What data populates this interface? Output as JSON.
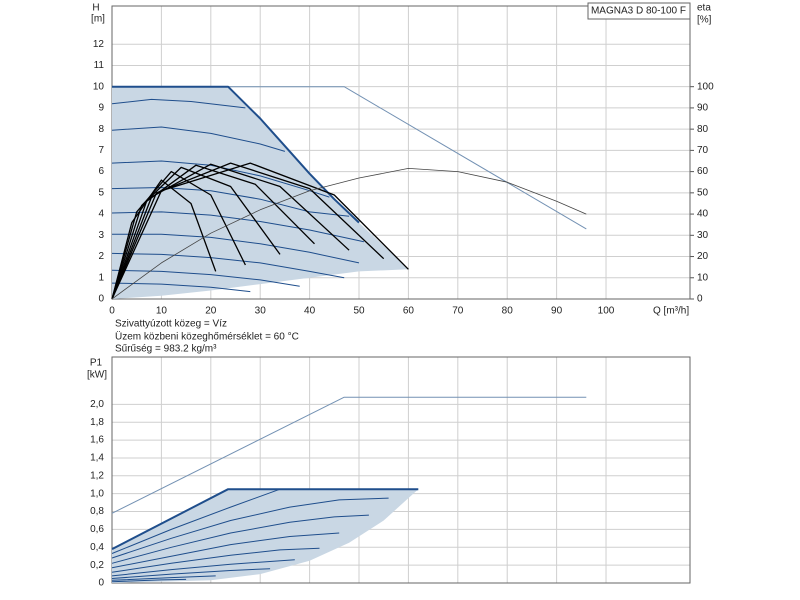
{
  "chart_data": [
    {
      "type": "line",
      "title": "MAGNA3 D 80-100 F",
      "ylabel": "H",
      "yunit": "[m]",
      "y2label": "eta",
      "y2unit": "[%]",
      "xlabel": "Q [m³/h]",
      "notes": [
        "Szivattyúzott közeg = Víz",
        "Üzem közbeni közeghőmérséklet = 60 °C",
        "Sűrűség = 983.2 kg/m³"
      ],
      "xlim": [
        0,
        117
      ],
      "xticks": [
        0,
        10,
        20,
        30,
        40,
        50,
        60,
        70,
        80,
        90,
        100
      ],
      "ylim": [
        0,
        13.8
      ],
      "yticks": [
        0,
        1,
        2,
        3,
        4,
        5,
        6,
        7,
        8,
        9,
        10,
        11,
        12
      ],
      "y2lim": [
        0,
        138
      ],
      "y2ticks": [
        0,
        10,
        20,
        30,
        40,
        50,
        60,
        70,
        80,
        90,
        100
      ],
      "grid": true,
      "series": [
        {
          "fill": "#c9d7e4",
          "x": [
            0,
            23.5,
            30,
            35,
            40,
            45,
            50,
            55,
            60,
            50,
            40,
            30,
            20,
            10,
            0
          ],
          "values": [
            10,
            10,
            8.5,
            7.2,
            5.9,
            4.7,
            3.6,
            2.5,
            1.4,
            1.3,
            1.0,
            0.7,
            0.4,
            0.15,
            0
          ]
        },
        {
          "color": "#7391b3",
          "width": 1,
          "x": [
            0,
            47,
            96
          ],
          "values": [
            10,
            10,
            3.3
          ]
        },
        {
          "color": "#1f4e8c",
          "width": 2,
          "x": [
            0,
            23.5,
            30,
            35,
            40,
            45,
            50
          ],
          "values": [
            10,
            10,
            8.5,
            7.2,
            5.9,
            4.7,
            3.6
          ]
        },
        {
          "color": "#1f4e8c",
          "width": 1,
          "x": [
            0,
            8,
            16,
            27
          ],
          "values": [
            9.2,
            9.4,
            9.3,
            9.0
          ]
        },
        {
          "color": "#1f4e8c",
          "width": 1,
          "x": [
            0,
            10,
            20,
            30,
            35
          ],
          "values": [
            7.95,
            8.1,
            7.8,
            7.3,
            6.95
          ]
        },
        {
          "color": "#1f4e8c",
          "width": 1,
          "x": [
            0,
            10,
            20,
            30,
            40,
            44
          ],
          "values": [
            6.4,
            6.5,
            6.3,
            5.8,
            5.1,
            4.8
          ]
        },
        {
          "color": "#1f4e8c",
          "width": 1,
          "x": [
            0,
            10,
            20,
            30,
            40,
            48
          ],
          "values": [
            5.2,
            5.25,
            5.1,
            4.7,
            4.1,
            3.9
          ]
        },
        {
          "color": "#1f4e8c",
          "width": 1,
          "x": [
            0,
            10,
            20,
            30,
            40,
            51
          ],
          "values": [
            4.05,
            4.1,
            3.95,
            3.65,
            3.25,
            2.7
          ]
        },
        {
          "color": "#1f4e8c",
          "width": 1,
          "x": [
            0,
            10,
            20,
            30,
            40,
            50
          ],
          "values": [
            3.05,
            3.05,
            2.9,
            2.6,
            2.2,
            1.7
          ]
        },
        {
          "color": "#1f4e8c",
          "width": 1,
          "x": [
            0,
            10,
            20,
            30,
            40,
            47
          ],
          "values": [
            2.15,
            2.1,
            1.95,
            1.7,
            1.3,
            1.0
          ]
        },
        {
          "color": "#1f4e8c",
          "width": 1,
          "x": [
            0,
            10,
            20,
            30,
            38
          ],
          "values": [
            1.35,
            1.3,
            1.15,
            0.9,
            0.6
          ]
        },
        {
          "color": "#1f4e8c",
          "width": 1,
          "x": [
            0,
            10,
            20,
            28
          ],
          "values": [
            0.75,
            0.7,
            0.55,
            0.35
          ]
        },
        {
          "color": "#000000",
          "width": 1.3,
          "x": [
            0,
            4,
            10,
            16,
            21
          ],
          "values": [
            0,
            3.6,
            5.6,
            4.5,
            1.3
          ]
        },
        {
          "color": "#000000",
          "width": 1.3,
          "x": [
            0,
            5,
            12,
            20,
            27
          ],
          "values": [
            0,
            4.1,
            6.0,
            4.9,
            1.6
          ]
        },
        {
          "color": "#000000",
          "width": 1.3,
          "x": [
            0,
            6,
            14,
            24,
            34
          ],
          "values": [
            0,
            4.4,
            6.2,
            5.3,
            2.1
          ]
        },
        {
          "color": "#000000",
          "width": 1.3,
          "x": [
            0,
            7,
            17,
            29,
            41
          ],
          "values": [
            0,
            4.6,
            6.3,
            5.4,
            2.6
          ]
        },
        {
          "color": "#000000",
          "width": 1.3,
          "x": [
            0,
            8,
            20,
            34,
            48
          ],
          "values": [
            0,
            4.8,
            6.35,
            5.3,
            2.3
          ]
        },
        {
          "color": "#000000",
          "width": 1.3,
          "x": [
            0,
            9,
            24,
            40,
            55
          ],
          "values": [
            0,
            5.0,
            6.4,
            5.2,
            1.9
          ]
        },
        {
          "color": "#000000",
          "width": 1.3,
          "x": [
            0,
            10,
            28,
            45,
            60
          ],
          "values": [
            0,
            5.1,
            6.4,
            4.9,
            1.4
          ]
        },
        {
          "color": "#444444",
          "width": 0.8,
          "axis": "y2",
          "x": [
            0,
            10,
            20,
            30,
            40,
            50,
            60,
            70,
            80,
            90,
            96
          ],
          "values": [
            0,
            17,
            31,
            42,
            51,
            57,
            61.5,
            60,
            55,
            46,
            40
          ]
        }
      ]
    },
    {
      "type": "line",
      "ylabel": "P1",
      "yunit": "[kW]",
      "xlim": [
        0,
        117
      ],
      "xticks": [
        0,
        10,
        20,
        30,
        40,
        50,
        60,
        70,
        80,
        90,
        100
      ],
      "xtick_labels": false,
      "ylim": [
        0,
        2.53
      ],
      "yticks": [
        0,
        {
          "value": 0.2,
          "label": "0,2"
        },
        {
          "value": 0.4,
          "label": "0,4"
        },
        {
          "value": 0.6,
          "label": "0,6"
        },
        {
          "value": 0.8,
          "label": "0,8"
        },
        {
          "value": 1.0,
          "label": "1,0"
        },
        {
          "value": 1.2,
          "label": "1,2"
        },
        {
          "value": 1.4,
          "label": "1,4"
        },
        {
          "value": 1.6,
          "label": "1,6"
        },
        {
          "value": 1.8,
          "label": "1,8"
        },
        {
          "value": 2.0,
          "label": "2,0"
        }
      ],
      "grid": true,
      "series": [
        {
          "fill": "#c9d7e4",
          "x": [
            0,
            23.5,
            62,
            60,
            55,
            48,
            40,
            30,
            20,
            0
          ],
          "values": [
            0.38,
            1.05,
            1.05,
            0.95,
            0.7,
            0.45,
            0.25,
            0.1,
            0.03,
            0
          ]
        },
        {
          "color": "#7391b3",
          "width": 1,
          "x": [
            0,
            47,
            96
          ],
          "values": [
            0.78,
            2.08,
            2.08
          ]
        },
        {
          "color": "#1f4e8c",
          "width": 2,
          "x": [
            0,
            23.5,
            62
          ],
          "values": [
            0.38,
            1.05,
            1.05
          ]
        },
        {
          "color": "#1f4e8c",
          "width": 1,
          "x": [
            0,
            12,
            24,
            34
          ],
          "values": [
            0.33,
            0.6,
            0.85,
            1.05
          ]
        },
        {
          "color": "#1f4e8c",
          "width": 1,
          "x": [
            0,
            12,
            24,
            36,
            46,
            56
          ],
          "values": [
            0.28,
            0.5,
            0.7,
            0.85,
            0.93,
            0.95
          ]
        },
        {
          "color": "#1f4e8c",
          "width": 1,
          "x": [
            0,
            12,
            24,
            36,
            45,
            52
          ],
          "values": [
            0.22,
            0.4,
            0.56,
            0.68,
            0.74,
            0.76
          ]
        },
        {
          "color": "#1f4e8c",
          "width": 1,
          "x": [
            0,
            12,
            24,
            36,
            46
          ],
          "values": [
            0.17,
            0.3,
            0.43,
            0.52,
            0.56
          ]
        },
        {
          "color": "#1f4e8c",
          "width": 1,
          "x": [
            0,
            12,
            24,
            34,
            42
          ],
          "values": [
            0.12,
            0.22,
            0.31,
            0.37,
            0.39
          ]
        },
        {
          "color": "#1f4e8c",
          "width": 1,
          "x": [
            0,
            12,
            24,
            37
          ],
          "values": [
            0.08,
            0.15,
            0.21,
            0.26
          ]
        },
        {
          "color": "#1f4e8c",
          "width": 1,
          "x": [
            0,
            12,
            24,
            32
          ],
          "values": [
            0.05,
            0.1,
            0.14,
            0.16
          ]
        },
        {
          "color": "#1f4e8c",
          "width": 1,
          "x": [
            0,
            12,
            21
          ],
          "values": [
            0.03,
            0.06,
            0.08
          ]
        },
        {
          "color": "#1f4e8c",
          "width": 1,
          "x": [
            0,
            10,
            15
          ],
          "values": [
            0.015,
            0.035,
            0.04
          ]
        }
      ]
    }
  ]
}
